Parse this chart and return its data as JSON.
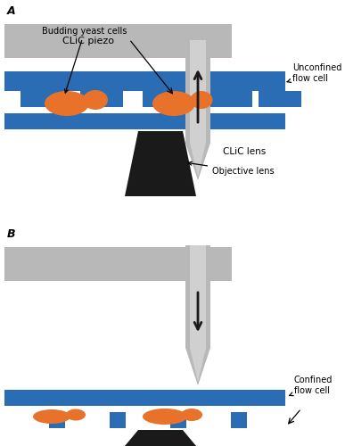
{
  "bg_color": "#ffffff",
  "blue_color": "#2b6db5",
  "gray_color": "#b8b8b8",
  "gray_light": "#d0d0d0",
  "black_color": "#1a1a1a",
  "orange_color": "#e8722a",
  "panel_A_label": "A",
  "panel_B_label": "B",
  "label_clic_piezo": "CLiC piezo",
  "label_clic_lens": "CLiC lens",
  "label_budding": "Budding yeast cells",
  "label_unconfined": "Unconfined\nflow cell",
  "label_objective": "Objective lens",
  "label_confined": "Confined\nflow cell"
}
